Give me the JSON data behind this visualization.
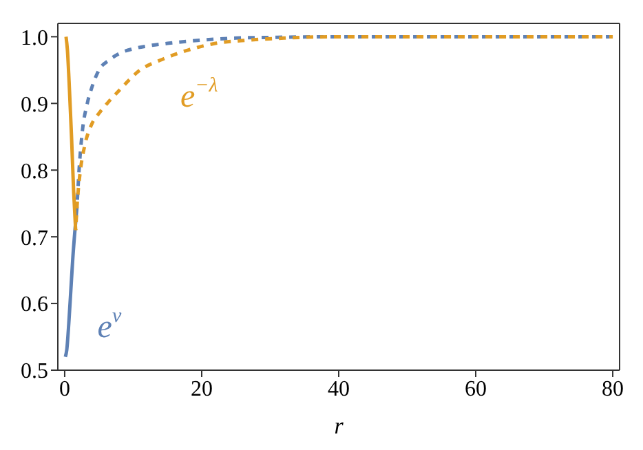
{
  "chart_data": {
    "type": "line",
    "xlabel": "r",
    "xlim": [
      -1,
      81
    ],
    "xticks": [
      0,
      20,
      40,
      60,
      80
    ],
    "ylim": [
      0.5,
      1.02
    ],
    "yticks": [
      {
        "value": 0.5,
        "label": "0.5"
      },
      {
        "value": 0.6,
        "label": "0.6"
      },
      {
        "value": 0.7,
        "label": "0.7"
      },
      {
        "value": 0.8,
        "label": "0.8"
      },
      {
        "value": 0.9,
        "label": "0.9"
      },
      {
        "value": 1.0,
        "label": "1.0"
      }
    ],
    "grid": false,
    "legend": false,
    "marker": "none",
    "series": [
      {
        "name": "e$^{ν}$",
        "color": "#5e81b5",
        "line_style": "solid",
        "x": [
          0.1,
          0.3,
          0.6,
          0.9,
          1.2,
          1.5,
          1.8
        ],
        "values": [
          0.52,
          0.53,
          0.57,
          0.62,
          0.67,
          0.71,
          0.745
        ]
      },
      {
        "color": "#5e81b5",
        "line_style": "dashed",
        "x": [
          1.8,
          2.1,
          2.6,
          3.3,
          4,
          5,
          6.5,
          8,
          10,
          12,
          15,
          20,
          25,
          30,
          40,
          50,
          60,
          70,
          80
        ],
        "values": [
          0.745,
          0.8,
          0.86,
          0.9,
          0.925,
          0.95,
          0.965,
          0.975,
          0.982,
          0.986,
          0.99,
          0.995,
          0.998,
          0.999,
          1.0,
          1.0,
          1.0,
          1.0,
          1.0
        ]
      },
      {
        "color": "#e19c24",
        "line_style": "solid",
        "x": [
          0.2,
          0.4,
          0.7,
          1.0,
          1.3,
          1.6
        ],
        "values": [
          1.0,
          0.98,
          0.92,
          0.85,
          0.77,
          0.71
        ]
      },
      {
        "name": "e$^{−λ}$",
        "color": "#e19c24",
        "line_style": "dashed",
        "x": [
          1.6,
          1.9,
          2.3,
          3,
          4,
          5,
          6.2,
          8,
          11,
          14,
          18,
          22,
          27,
          32,
          40,
          50,
          60,
          70,
          80
        ],
        "values": [
          0.71,
          0.76,
          0.8,
          0.84,
          0.87,
          0.885,
          0.9,
          0.92,
          0.95,
          0.965,
          0.98,
          0.99,
          0.995,
          0.998,
          1.0,
          1.0,
          1.0,
          1.0,
          1.0
        ]
      }
    ]
  }
}
